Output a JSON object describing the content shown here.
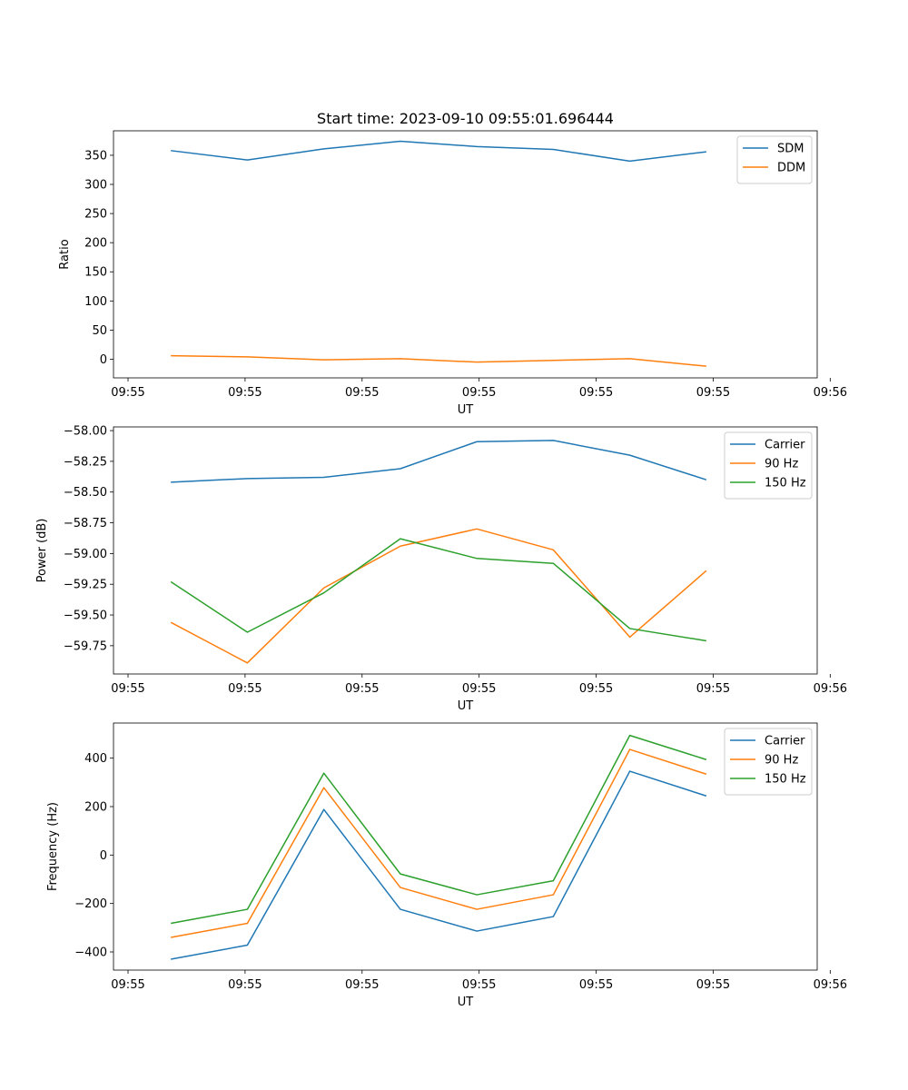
{
  "figure": {
    "title": "Start time: 2023-09-10 09:55:01.696444"
  },
  "chart_data": [
    {
      "type": "line",
      "ylabel": "Ratio",
      "xlabel": "UT",
      "x": [
        0,
        1,
        2,
        3,
        4,
        5,
        6,
        7
      ],
      "xlim": [
        -0.75,
        8.45
      ],
      "x_ticks": [
        {
          "value": -0.56,
          "label": "09:55"
        },
        {
          "value": 0.97,
          "label": "09:55"
        },
        {
          "value": 2.5,
          "label": "09:55"
        },
        {
          "value": 4.03,
          "label": "09:55"
        },
        {
          "value": 5.56,
          "label": "09:55"
        },
        {
          "value": 7.09,
          "label": "09:55"
        },
        {
          "value": 8.62,
          "label": "09:56"
        }
      ],
      "ylim": [
        -32,
        392
      ],
      "y_ticks": [
        {
          "value": 0,
          "label": "0"
        },
        {
          "value": 50,
          "label": "50"
        },
        {
          "value": 100,
          "label": "100"
        },
        {
          "value": 150,
          "label": "150"
        },
        {
          "value": 200,
          "label": "200"
        },
        {
          "value": 250,
          "label": "250"
        },
        {
          "value": 300,
          "label": "300"
        },
        {
          "value": 350,
          "label": "350"
        }
      ],
      "legend_position": "top-right",
      "series": [
        {
          "name": "SDM",
          "color": "#1f77b4",
          "values": [
            358,
            342,
            361,
            374,
            365,
            360,
            340,
            356
          ]
        },
        {
          "name": "DDM",
          "color": "#ff7f0e",
          "values": [
            6,
            4,
            -1,
            1,
            -5,
            -2,
            1,
            -12
          ]
        }
      ]
    },
    {
      "type": "line",
      "ylabel": "Power (dB)",
      "xlabel": "UT",
      "x": [
        0,
        1,
        2,
        3,
        4,
        5,
        6,
        7
      ],
      "xlim": [
        -0.75,
        8.45
      ],
      "x_ticks": [
        {
          "value": -0.56,
          "label": "09:55"
        },
        {
          "value": 0.97,
          "label": "09:55"
        },
        {
          "value": 2.5,
          "label": "09:55"
        },
        {
          "value": 4.03,
          "label": "09:55"
        },
        {
          "value": 5.56,
          "label": "09:55"
        },
        {
          "value": 7.09,
          "label": "09:55"
        },
        {
          "value": 8.62,
          "label": "09:56"
        }
      ],
      "ylim": [
        -59.98,
        -57.97
      ],
      "y_ticks": [
        {
          "value": -59.75,
          "label": "−59.75"
        },
        {
          "value": -59.5,
          "label": "−59.50"
        },
        {
          "value": -59.25,
          "label": "−59.25"
        },
        {
          "value": -59.0,
          "label": "−59.00"
        },
        {
          "value": -58.75,
          "label": "−58.75"
        },
        {
          "value": -58.5,
          "label": "−58.50"
        },
        {
          "value": -58.25,
          "label": "−58.25"
        },
        {
          "value": -58.0,
          "label": "−58.00"
        }
      ],
      "legend_position": "top-right",
      "series": [
        {
          "name": "Carrier",
          "color": "#1f77b4",
          "values": [
            -58.42,
            -58.39,
            -58.38,
            -58.31,
            -58.09,
            -58.08,
            -58.2,
            -58.4
          ]
        },
        {
          "name": "90 Hz",
          "color": "#ff7f0e",
          "values": [
            -59.56,
            -59.89,
            -59.28,
            -58.94,
            -58.8,
            -58.97,
            -59.68,
            -59.14
          ]
        },
        {
          "name": "150 Hz",
          "color": "#2ca02c",
          "values": [
            -59.23,
            -59.64,
            -59.32,
            -58.88,
            -59.04,
            -59.08,
            -59.61,
            -59.71
          ]
        }
      ]
    },
    {
      "type": "line",
      "ylabel": "Frequency (Hz)",
      "xlabel": "UT",
      "x": [
        0,
        1,
        2,
        3,
        4,
        5,
        6,
        7
      ],
      "xlim": [
        -0.75,
        8.45
      ],
      "x_ticks": [
        {
          "value": -0.56,
          "label": "09:55"
        },
        {
          "value": 0.97,
          "label": "09:55"
        },
        {
          "value": 2.5,
          "label": "09:55"
        },
        {
          "value": 4.03,
          "label": "09:55"
        },
        {
          "value": 5.56,
          "label": "09:55"
        },
        {
          "value": 7.09,
          "label": "09:55"
        },
        {
          "value": 8.62,
          "label": "09:56"
        }
      ],
      "ylim": [
        -475,
        545
      ],
      "y_ticks": [
        {
          "value": -400,
          "label": "−400"
        },
        {
          "value": -200,
          "label": "−200"
        },
        {
          "value": 0,
          "label": "0"
        },
        {
          "value": 200,
          "label": "200"
        },
        {
          "value": 400,
          "label": "400"
        }
      ],
      "legend_position": "top-right",
      "series": [
        {
          "name": "Carrier",
          "color": "#1f77b4",
          "values": [
            -430,
            -372,
            188,
            -224,
            -314,
            -254,
            346,
            244
          ]
        },
        {
          "name": "90 Hz",
          "color": "#ff7f0e",
          "values": [
            -340,
            -282,
            278,
            -134,
            -224,
            -164,
            436,
            334
          ]
        },
        {
          "name": "150 Hz",
          "color": "#2ca02c",
          "values": [
            -282,
            -224,
            338,
            -78,
            -164,
            -106,
            494,
            394
          ]
        }
      ]
    }
  ]
}
